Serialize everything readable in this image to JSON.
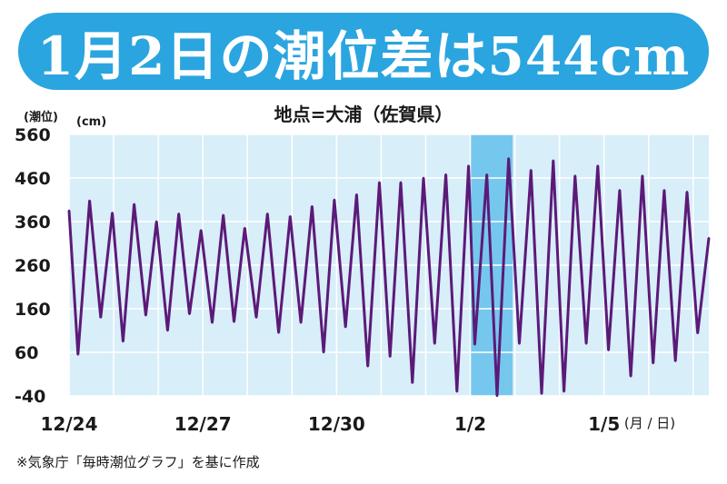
{
  "title": "1月2日の潮位差は544cm",
  "subtitle": "地点=大浦（佐賀県）",
  "y_unit_top": "(潮位)",
  "y_unit_bottom": "(cm)",
  "x_unit": "(月 / 日)",
  "source": "※気象庁「毎時潮位グラフ」を基に作成",
  "colors": {
    "banner": "#2aa5df",
    "plot_bg": "#d8eef9",
    "highlight": "#76c7ee",
    "line": "#5c1a78"
  },
  "chart_data": {
    "type": "line",
    "title": "1月2日の潮位差は544cm",
    "subtitle": "地点=大浦（佐賀県）",
    "ylabel": "(潮位) (cm)",
    "xlabel": "(月 / 日)",
    "ylim": [
      -40,
      560
    ],
    "yticks": [
      560,
      460,
      360,
      260,
      160,
      60,
      -40
    ],
    "xlim": [
      0,
      14.35
    ],
    "xtick_labels": [
      {
        "x": 0,
        "label": "12/24"
      },
      {
        "x": 3,
        "label": "12/27"
      },
      {
        "x": 6,
        "label": "12/30"
      },
      {
        "x": 9,
        "label": "1/2"
      },
      {
        "x": 12,
        "label": "1/5"
      }
    ],
    "highlight": {
      "from": 9,
      "to": 9.95,
      "label": "1/2"
    },
    "grid": true,
    "series": [
      {
        "x": [
          0.0,
          0.2,
          0.46,
          0.71,
          0.97,
          1.21,
          1.46,
          1.72,
          1.96,
          2.21,
          2.46,
          2.7,
          2.96,
          3.21,
          3.46,
          3.7,
          3.94,
          4.2,
          4.45,
          4.7,
          4.96,
          5.2,
          5.45,
          5.71,
          5.95,
          6.2,
          6.45,
          6.7,
          6.96,
          7.2,
          7.44,
          7.7,
          7.95,
          8.2,
          8.45,
          8.7,
          8.96,
          9.1,
          9.37,
          9.6,
          9.86,
          10.1,
          10.36,
          10.6,
          10.86,
          11.1,
          11.35,
          11.6,
          11.86,
          12.1,
          12.35,
          12.6,
          12.86,
          13.1,
          13.35,
          13.6,
          13.86,
          14.1,
          14.35
        ],
        "y": [
          385,
          55,
          408,
          140,
          380,
          85,
          400,
          145,
          360,
          110,
          378,
          148,
          340,
          128,
          375,
          130,
          345,
          140,
          378,
          105,
          372,
          128,
          395,
          60,
          410,
          118,
          422,
          28,
          450,
          50,
          450,
          -10,
          460,
          80,
          468,
          -30,
          488,
          78,
          468,
          -40,
          505,
          80,
          478,
          -35,
          500,
          -30,
          465,
          80,
          488,
          65,
          432,
          5,
          465,
          35,
          432,
          40,
          428,
          104,
          322
        ]
      }
    ]
  }
}
